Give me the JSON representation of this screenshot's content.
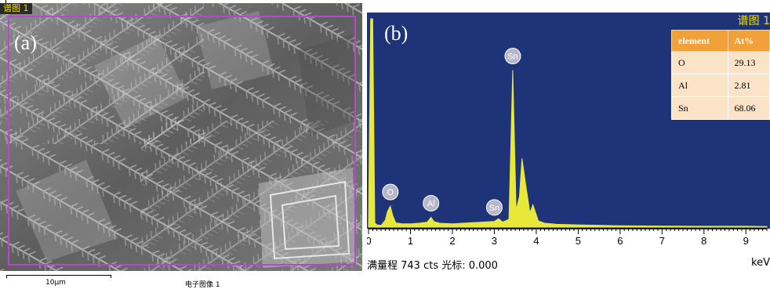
{
  "panel_a": {
    "letter": "(a)",
    "region_tag": "谱图 1",
    "scale_label": "10μm",
    "image_caption": "电子图像 1"
  },
  "panel_b": {
    "letter": "(b)",
    "spectrum_tag": "谱图 1",
    "status_line": "满量程 743 cts 光标: 0.000",
    "unit_label": "keV"
  },
  "colors": {
    "spectrum_background": "#1f3478",
    "spectrum_fill": "#e8e838",
    "peak_label_fill": "#b7b7c9",
    "frame": "#b04ad0",
    "table_header": "#f2a03a",
    "table_cell": "#fbe3c8"
  },
  "chart_data": {
    "type": "area",
    "xlabel": "keV",
    "full_scale_counts": 743,
    "xlim": [
      0,
      9.5
    ],
    "ylim": [
      0,
      743
    ],
    "x_ticks": [
      "0",
      "1",
      "2",
      "3",
      "4",
      "5",
      "6",
      "7",
      "8",
      "9"
    ],
    "spectrum": {
      "x": [
        0.0,
        0.05,
        0.1,
        0.15,
        0.2,
        0.3,
        0.4,
        0.45,
        0.52,
        0.58,
        0.65,
        0.8,
        1.0,
        1.2,
        1.4,
        1.49,
        1.56,
        1.7,
        2.0,
        2.5,
        3.0,
        3.1,
        3.2,
        3.35,
        3.44,
        3.52,
        3.6,
        3.66,
        3.75,
        3.85,
        3.92,
        4.05,
        4.2,
        4.5,
        5.0,
        6.0,
        7.0,
        8.0,
        9.0,
        9.5
      ],
      "counts": [
        10,
        743,
        743,
        15,
        8,
        6,
        25,
        55,
        75,
        40,
        15,
        12,
        12,
        14,
        18,
        35,
        20,
        14,
        12,
        16,
        20,
        30,
        18,
        28,
        560,
        60,
        110,
        245,
        150,
        50,
        80,
        22,
        14,
        10,
        8,
        5,
        4,
        3,
        3,
        2
      ]
    },
    "peak_labels": [
      {
        "element": "O",
        "x": 0.52
      },
      {
        "element": "Al",
        "x": 1.49
      },
      {
        "element": "Sn",
        "x": 3.0
      },
      {
        "element": "Sn",
        "x": 3.44
      }
    ],
    "table": {
      "columns": [
        "element",
        "At%"
      ],
      "rows": [
        [
          "O",
          "29.13"
        ],
        [
          "Al",
          "2.81"
        ],
        [
          "Sn",
          "68.06"
        ]
      ]
    }
  }
}
